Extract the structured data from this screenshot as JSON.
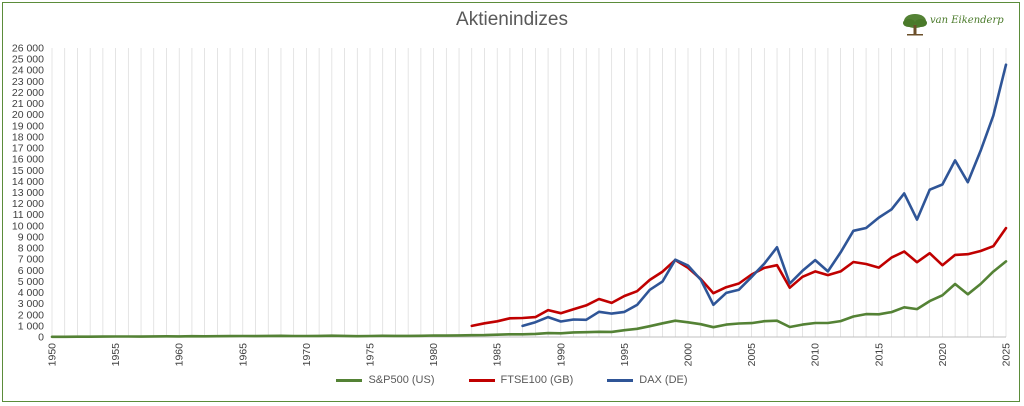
{
  "chart_data": {
    "type": "line",
    "title": "Aktienindizes",
    "brand": "van Eikenderp",
    "xlim": [
      1950,
      2025
    ],
    "ylim": [
      0,
      26000
    ],
    "x_ticks": [
      1950,
      1955,
      1960,
      1965,
      1970,
      1975,
      1980,
      1985,
      1990,
      1995,
      2000,
      2005,
      2010,
      2015,
      2020,
      2025
    ],
    "y_ticks": [
      0,
      1000,
      2000,
      3000,
      4000,
      5000,
      6000,
      7000,
      8000,
      9000,
      10000,
      11000,
      12000,
      13000,
      14000,
      15000,
      16000,
      17000,
      18000,
      19000,
      20000,
      21000,
      22000,
      23000,
      24000,
      25000,
      26000
    ],
    "y_tick_labels": [
      "0",
      "1 000",
      "2 000",
      "3 000",
      "4 000",
      "5 000",
      "6 000",
      "7 000",
      "8 000",
      "9 000",
      "10 000",
      "11 000",
      "12 000",
      "13 000",
      "14 000",
      "15 000",
      "16 000",
      "17 000",
      "18 000",
      "19 000",
      "20 000",
      "21 000",
      "22 000",
      "23 000",
      "24 000",
      "25 000",
      "26 000"
    ],
    "grid": "vertical",
    "legend_position": "bottom",
    "series": [
      {
        "name": "S&P500 (US)",
        "color": "#548235",
        "x": [
          1950,
          1951,
          1952,
          1953,
          1954,
          1955,
          1956,
          1957,
          1958,
          1959,
          1960,
          1961,
          1962,
          1963,
          1964,
          1965,
          1966,
          1967,
          1968,
          1969,
          1970,
          1971,
          1972,
          1973,
          1974,
          1975,
          1976,
          1977,
          1978,
          1979,
          1980,
          1981,
          1982,
          1983,
          1984,
          1985,
          1986,
          1987,
          1988,
          1989,
          1990,
          1991,
          1992,
          1993,
          1994,
          1995,
          1996,
          1997,
          1998,
          1999,
          2000,
          2001,
          2002,
          2003,
          2004,
          2005,
          2006,
          2007,
          2008,
          2009,
          2010,
          2011,
          2012,
          2013,
          2014,
          2015,
          2016,
          2017,
          2018,
          2019,
          2020,
          2021,
          2022,
          2023,
          2024,
          2025
        ],
        "values": [
          20,
          22,
          24,
          25,
          35,
          45,
          47,
          40,
          55,
          60,
          58,
          70,
          63,
          75,
          85,
          92,
          80,
          96,
          104,
          92,
          92,
          102,
          118,
          97,
          68,
          90,
          107,
          95,
          96,
          108,
          136,
          122,
          141,
          165,
          167,
          211,
          242,
          247,
          278,
          353,
          330,
          417,
          436,
          466,
          459,
          616,
          741,
          970,
          1229,
          1469,
          1320,
          1148,
          880,
          1112,
          1212,
          1248,
          1418,
          1468,
          903,
          1115,
          1258,
          1258,
          1426,
          1848,
          2059,
          2044,
          2239,
          2674,
          2507,
          3231,
          3756,
          4766,
          3840,
          4770,
          5882,
          6800
        ]
      },
      {
        "name": "FTSE100 (GB)",
        "color": "#c00000",
        "x": [
          1983,
          1984,
          1985,
          1986,
          1987,
          1988,
          1989,
          1990,
          1991,
          1992,
          1993,
          1994,
          1995,
          1996,
          1997,
          1998,
          1999,
          2000,
          2001,
          2002,
          2003,
          2004,
          2005,
          2006,
          2007,
          2008,
          2009,
          2010,
          2011,
          2012,
          2013,
          2014,
          2015,
          2016,
          2017,
          2018,
          2019,
          2020,
          2021,
          2022,
          2023,
          2024,
          2025
        ],
        "values": [
          1000,
          1232,
          1413,
          1679,
          1713,
          1793,
          2423,
          2144,
          2493,
          2847,
          3418,
          3066,
          3689,
          4119,
          5136,
          5883,
          6930,
          6222,
          5217,
          3940,
          4477,
          4814,
          5619,
          6221,
          6457,
          4434,
          5413,
          5900,
          5572,
          5898,
          6749,
          6566,
          6242,
          7143,
          7688,
          6728,
          7542,
          6461,
          7385,
          7452,
          7733,
          8173,
          9800
        ]
      },
      {
        "name": "DAX (DE)",
        "color": "#2f5597",
        "x": [
          1987,
          1988,
          1989,
          1990,
          1991,
          1992,
          1993,
          1994,
          1995,
          1996,
          1997,
          1998,
          1999,
          2000,
          2001,
          2002,
          2003,
          2004,
          2005,
          2006,
          2007,
          2008,
          2009,
          2010,
          2011,
          2012,
          2013,
          2014,
          2015,
          2016,
          2017,
          2018,
          2019,
          2020,
          2021,
          2022,
          2023,
          2024,
          2025
        ],
        "values": [
          1000,
          1328,
          1790,
          1398,
          1578,
          1545,
          2267,
          2107,
          2254,
          2889,
          4250,
          5002,
          6958,
          6434,
          5160,
          2893,
          3965,
          4256,
          5408,
          6597,
          8067,
          4810,
          5957,
          6914,
          5898,
          7612,
          9552,
          9806,
          10743,
          11481,
          12918,
          10559,
          13249,
          13719,
          15885,
          13924,
          16752,
          19909,
          24500
        ]
      }
    ]
  }
}
